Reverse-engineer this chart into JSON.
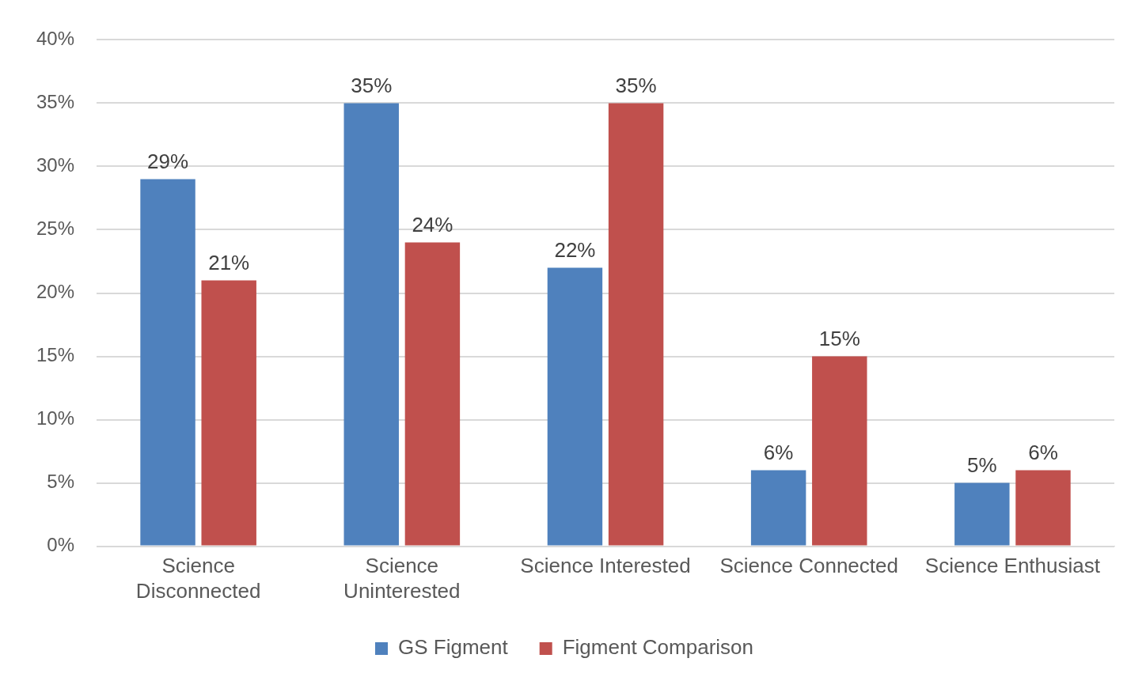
{
  "chart_data": {
    "type": "bar",
    "categories": [
      "Science Disconnected",
      "Science Uninterested",
      "Science Interested",
      "Science Connected",
      "Science Enthusiast"
    ],
    "series": [
      {
        "name": "GS Figment",
        "color": "#4f81bd",
        "values": [
          29,
          35,
          22,
          6,
          5
        ],
        "value_labels": [
          "29%",
          "35%",
          "22%",
          "6%",
          "5%"
        ]
      },
      {
        "name": "Figment Comparison",
        "color": "#c0504d",
        "values": [
          21,
          24,
          35,
          15,
          6
        ],
        "value_labels": [
          "21%",
          "24%",
          "35%",
          "15%",
          "6%"
        ]
      }
    ],
    "ylim": [
      0,
      40
    ],
    "yticks": [
      {
        "value": 0,
        "label": "0%"
      },
      {
        "value": 5,
        "label": "5%"
      },
      {
        "value": 10,
        "label": "10%"
      },
      {
        "value": 15,
        "label": "15%"
      },
      {
        "value": 20,
        "label": "20%"
      },
      {
        "value": 25,
        "label": "25%"
      },
      {
        "value": 30,
        "label": "30%"
      },
      {
        "value": 35,
        "label": "35%"
      },
      {
        "value": 40,
        "label": "40%"
      }
    ],
    "grid": "y",
    "legend": "bottom"
  }
}
